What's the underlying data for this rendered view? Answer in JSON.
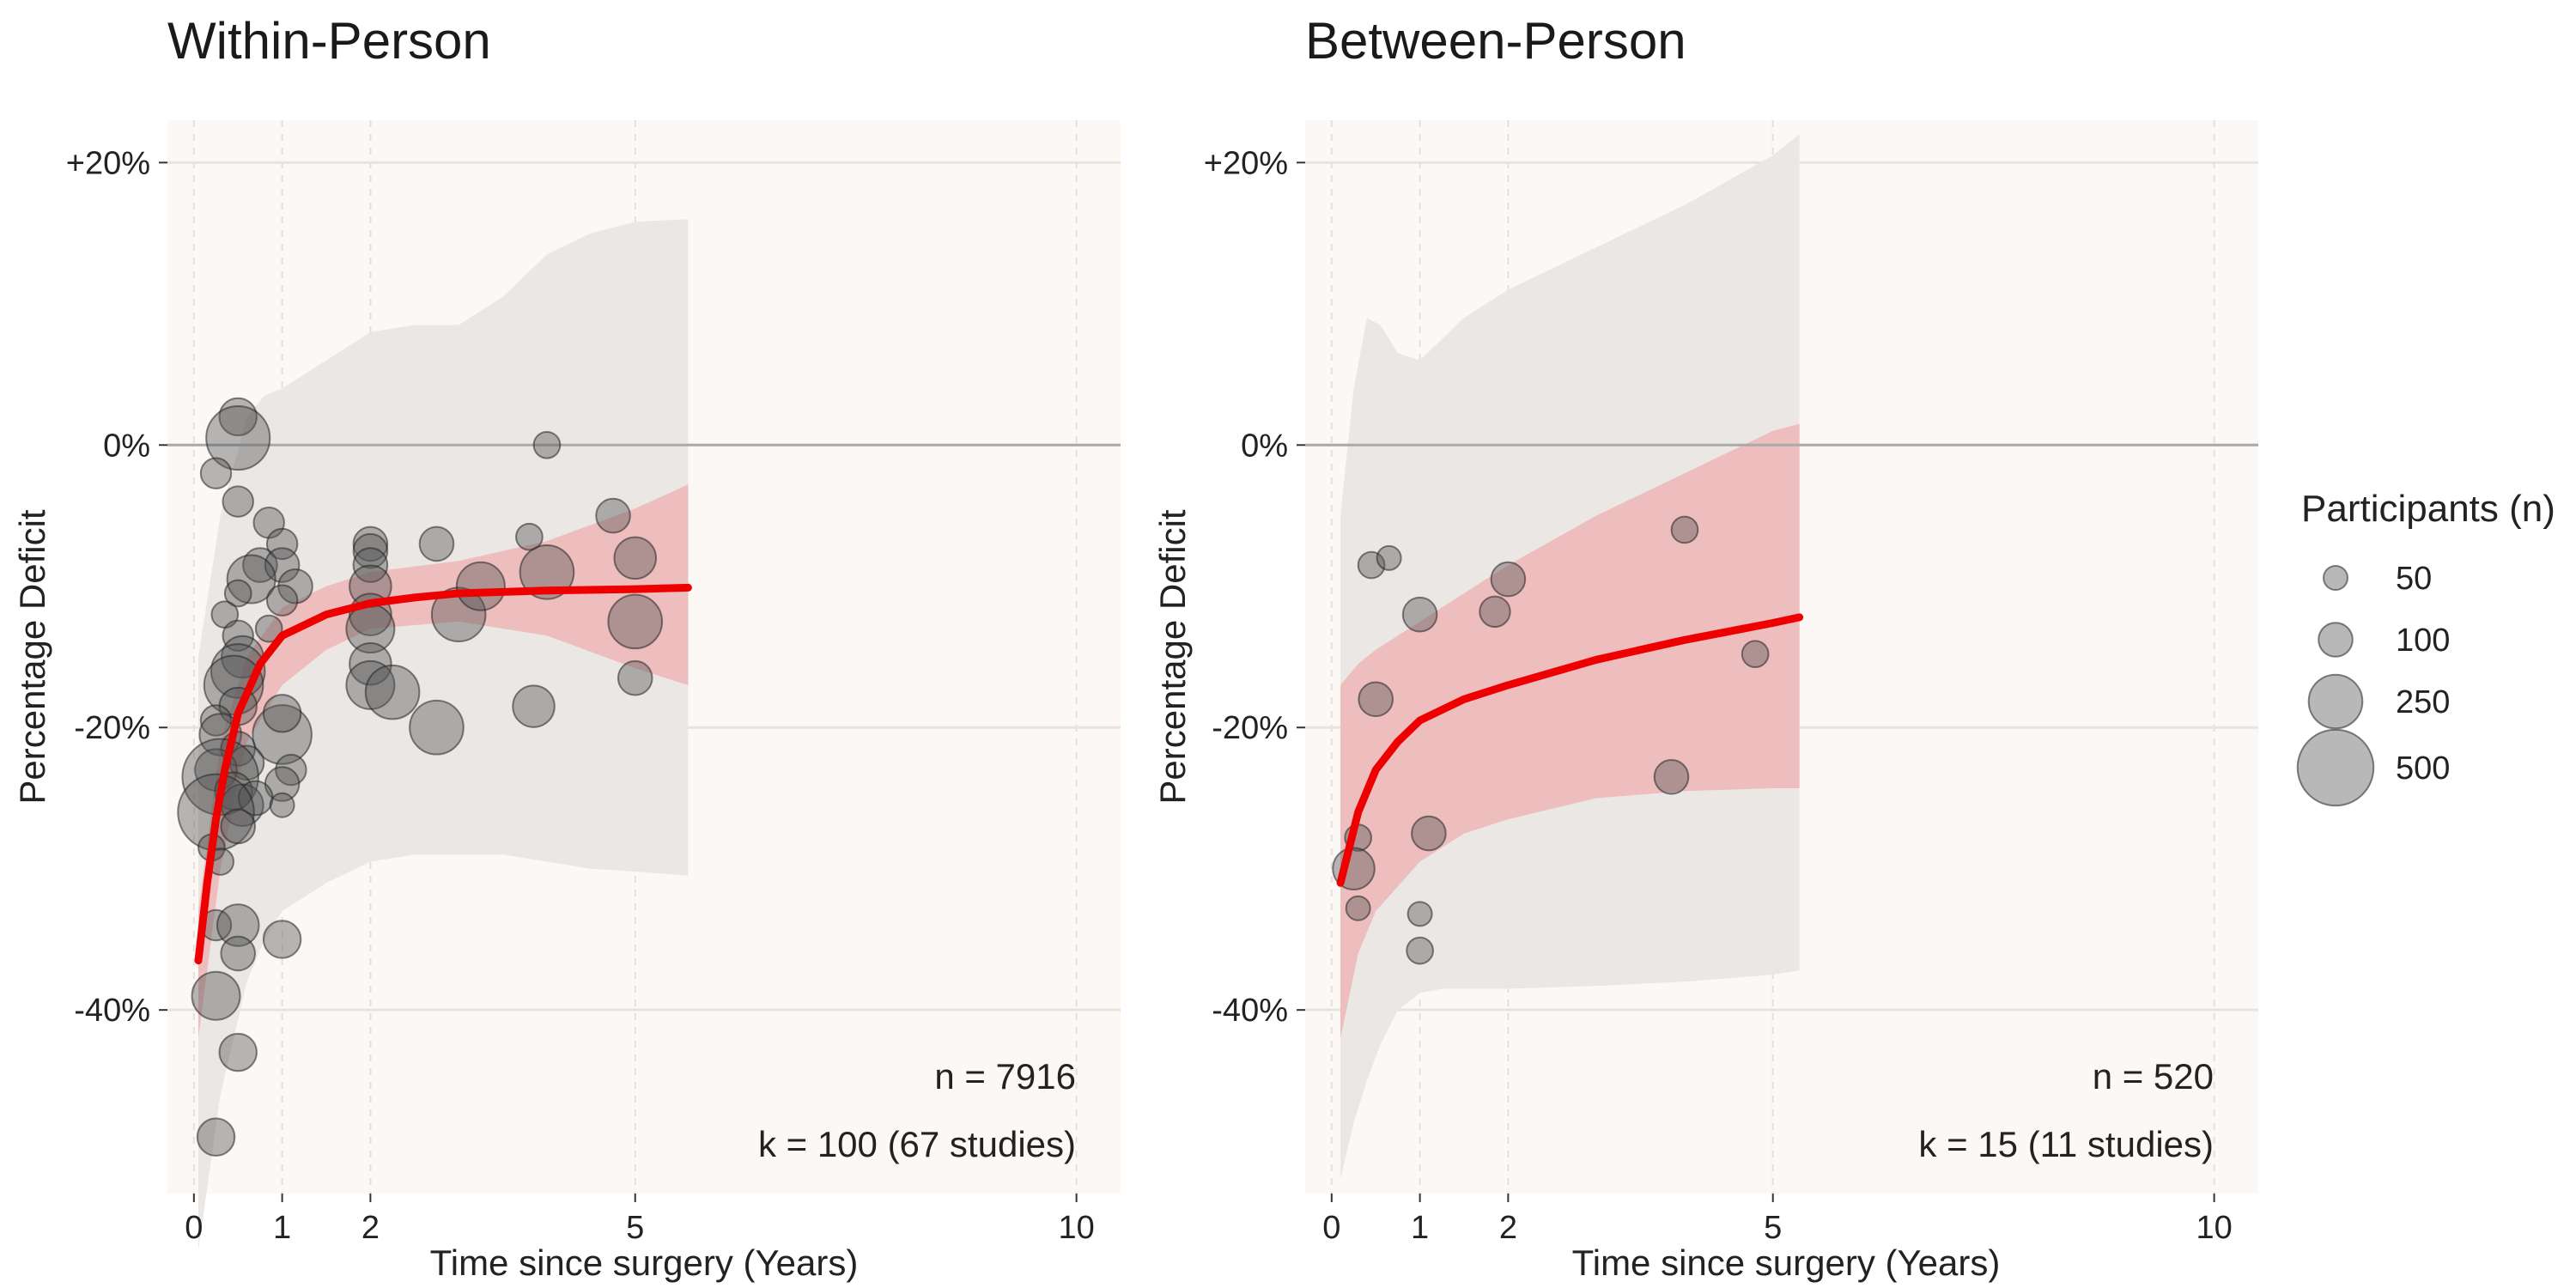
{
  "chart_data": [
    {
      "type": "scatter",
      "title": "Within-Person",
      "xlabel": "Time since surgery (Years)",
      "ylabel": "Percentage Deficit",
      "xlim": [
        -0.3,
        10.5
      ],
      "ylim": [
        -53,
        23
      ],
      "x_ticks": [
        0,
        1,
        2,
        5,
        10
      ],
      "y_ticks": [
        20,
        0,
        -20,
        -40
      ],
      "y_tick_labels": [
        "+20%",
        "0%",
        "-20%",
        "-40%"
      ],
      "grid": true,
      "reference_line": 0,
      "annotations": [
        "n = 7916",
        "k = 100 (67 studies)"
      ],
      "fit_curve": {
        "x": [
          0.05,
          0.15,
          0.25,
          0.35,
          0.5,
          0.75,
          1.0,
          1.5,
          2.0,
          2.5,
          3.0,
          4.0,
          5.0,
          5.6
        ],
        "y": [
          -36.5,
          -31,
          -26.5,
          -23,
          -19,
          -15.5,
          -13.5,
          -12,
          -11.2,
          -10.8,
          -10.5,
          -10.3,
          -10.2,
          -10.1
        ],
        "color": "#ee0000"
      },
      "inner_band": {
        "x": [
          0.05,
          0.3,
          0.6,
          1.0,
          1.5,
          2.0,
          3.0,
          4.0,
          5.0,
          5.6
        ],
        "upper": [
          -33,
          -21,
          -15,
          -11.5,
          -10,
          -9,
          -8.2,
          -6.8,
          -4.5,
          -2.8
        ],
        "lower": [
          -42,
          -30,
          -21,
          -17,
          -14.5,
          -13,
          -12.5,
          -13.5,
          -15.8,
          -17
        ],
        "color": "#eebbbb"
      },
      "outer_band": {
        "x": [
          0.05,
          0.3,
          0.6,
          0.8,
          1.0,
          1.5,
          2.0,
          2.5,
          3.0,
          3.5,
          4.0,
          4.5,
          5.0,
          5.6
        ],
        "upper": [
          -15,
          -5,
          2,
          3.5,
          4,
          6,
          8,
          8.5,
          8.5,
          10.5,
          13.5,
          15,
          15.8,
          16
        ],
        "lower": [
          -57,
          -46,
          -38,
          -35,
          -33,
          -31,
          -29.5,
          -29,
          -29,
          -29,
          -29.5,
          -30,
          -30.2,
          -30.5
        ],
        "color": "#ebe7e4"
      },
      "points": [
        {
          "x": 0.5,
          "y": 2,
          "n": 120
        },
        {
          "x": 0.5,
          "y": 0.5,
          "n": 350
        },
        {
          "x": 0.25,
          "y": -2,
          "n": 80
        },
        {
          "x": 0.5,
          "y": -4,
          "n": 80
        },
        {
          "x": 0.85,
          "y": -5.5,
          "n": 80
        },
        {
          "x": 1.0,
          "y": -7,
          "n": 80
        },
        {
          "x": 0.75,
          "y": -8.5,
          "n": 100
        },
        {
          "x": 1.0,
          "y": -8.5,
          "n": 100
        },
        {
          "x": 0.65,
          "y": -9.5,
          "n": 200
        },
        {
          "x": 1.15,
          "y": -10,
          "n": 100
        },
        {
          "x": 0.5,
          "y": -10.5,
          "n": 60
        },
        {
          "x": 1.0,
          "y": -11,
          "n": 80
        },
        {
          "x": 0.35,
          "y": -12,
          "n": 60
        },
        {
          "x": 0.85,
          "y": -13,
          "n": 60
        },
        {
          "x": 0.5,
          "y": -13.5,
          "n": 80
        },
        {
          "x": 0.55,
          "y": -15,
          "n": 150
        },
        {
          "x": 0.5,
          "y": -16,
          "n": 250
        },
        {
          "x": 0.45,
          "y": -17,
          "n": 300
        },
        {
          "x": 0.5,
          "y": -18.5,
          "n": 120
        },
        {
          "x": 0.25,
          "y": -19.5,
          "n": 80
        },
        {
          "x": 0.3,
          "y": -20.5,
          "n": 150
        },
        {
          "x": 1.0,
          "y": -20.5,
          "n": 300
        },
        {
          "x": 1.0,
          "y": -19,
          "n": 120
        },
        {
          "x": 0.5,
          "y": -21.5,
          "n": 100
        },
        {
          "x": 0.6,
          "y": -22.5,
          "n": 100
        },
        {
          "x": 0.25,
          "y": -23,
          "n": 150
        },
        {
          "x": 0.3,
          "y": -23.5,
          "n": 500
        },
        {
          "x": 1.1,
          "y": -23,
          "n": 80
        },
        {
          "x": 0.45,
          "y": -24.5,
          "n": 120
        },
        {
          "x": 1.0,
          "y": -24,
          "n": 100
        },
        {
          "x": 0.55,
          "y": -25.5,
          "n": 150
        },
        {
          "x": 0.7,
          "y": -25,
          "n": 100
        },
        {
          "x": 0.25,
          "y": -26,
          "n": 500
        },
        {
          "x": 0.5,
          "y": -27,
          "n": 100
        },
        {
          "x": 1.0,
          "y": -25.5,
          "n": 50
        },
        {
          "x": 0.2,
          "y": -28.5,
          "n": 60
        },
        {
          "x": 0.3,
          "y": -29.5,
          "n": 60
        },
        {
          "x": 0.25,
          "y": -34,
          "n": 80
        },
        {
          "x": 0.5,
          "y": -34,
          "n": 150
        },
        {
          "x": 0.5,
          "y": -36,
          "n": 100
        },
        {
          "x": 1.0,
          "y": -35,
          "n": 120
        },
        {
          "x": 0.25,
          "y": -39,
          "n": 200
        },
        {
          "x": 0.5,
          "y": -43,
          "n": 120
        },
        {
          "x": 0.25,
          "y": -49,
          "n": 120
        },
        {
          "x": 2.0,
          "y": -7,
          "n": 100
        },
        {
          "x": 2.0,
          "y": -7.5,
          "n": 100
        },
        {
          "x": 2.0,
          "y": -8.5,
          "n": 100
        },
        {
          "x": 2.0,
          "y": -10,
          "n": 150
        },
        {
          "x": 2.0,
          "y": -12,
          "n": 150
        },
        {
          "x": 2.0,
          "y": -13,
          "n": 200
        },
        {
          "x": 2.0,
          "y": -15.5,
          "n": 150
        },
        {
          "x": 2.0,
          "y": -17,
          "n": 200
        },
        {
          "x": 2.25,
          "y": -17.5,
          "n": 250
        },
        {
          "x": 2.75,
          "y": -20,
          "n": 250
        },
        {
          "x": 2.75,
          "y": -7,
          "n": 100
        },
        {
          "x": 3.0,
          "y": -12,
          "n": 250
        },
        {
          "x": 3.25,
          "y": -10,
          "n": 200
        },
        {
          "x": 3.8,
          "y": -6.5,
          "n": 60
        },
        {
          "x": 4.0,
          "y": 0,
          "n": 60
        },
        {
          "x": 4.0,
          "y": -9,
          "n": 250
        },
        {
          "x": 3.85,
          "y": -18.5,
          "n": 150
        },
        {
          "x": 4.75,
          "y": -5,
          "n": 100
        },
        {
          "x": 5.0,
          "y": -8,
          "n": 150
        },
        {
          "x": 5.0,
          "y": -12.5,
          "n": 250
        },
        {
          "x": 5.0,
          "y": -16.5,
          "n": 100
        }
      ]
    },
    {
      "type": "scatter",
      "title": "Between-Person",
      "xlabel": "Time since surgery (Years)",
      "ylabel": "Percentage Deficit",
      "xlim": [
        -0.3,
        10.5
      ],
      "ylim": [
        -53,
        23
      ],
      "x_ticks": [
        0,
        1,
        2,
        5,
        10
      ],
      "y_ticks": [
        20,
        0,
        -20,
        -40
      ],
      "y_tick_labels": [
        "+20%",
        "0%",
        "-20%",
        "-40%"
      ],
      "grid": true,
      "reference_line": 0,
      "annotations": [
        "n = 520",
        "k = 15 (11 studies)"
      ],
      "fit_curve": {
        "x": [
          0.1,
          0.3,
          0.5,
          0.75,
          1.0,
          1.5,
          2.0,
          3.0,
          4.0,
          5.0,
          5.3
        ],
        "y": [
          -31,
          -26,
          -23,
          -21,
          -19.5,
          -18,
          -17,
          -15.2,
          -13.8,
          -12.6,
          -12.2
        ],
        "color": "#ee0000"
      },
      "inner_band": {
        "x": [
          0.1,
          0.3,
          0.5,
          1.0,
          1.5,
          2.0,
          3.0,
          4.0,
          5.0,
          5.3
        ],
        "upper": [
          -17,
          -15.5,
          -14.5,
          -12.5,
          -10.5,
          -8.5,
          -5,
          -2,
          1,
          1.5
        ],
        "lower": [
          -42,
          -36,
          -33,
          -29.5,
          -27.5,
          -26.5,
          -25,
          -24.5,
          -24.3,
          -24.3
        ],
        "color": "#eebbbb"
      },
      "outer_band": {
        "x": [
          0.1,
          0.25,
          0.4,
          0.55,
          0.75,
          1.0,
          1.25,
          1.5,
          2.0,
          3.0,
          4.0,
          5.0,
          5.3
        ],
        "upper": [
          -5,
          4,
          9,
          8.5,
          6.5,
          6,
          7.5,
          9,
          11,
          14,
          17,
          20.5,
          22
        ],
        "lower": [
          -52,
          -48,
          -45,
          -42.5,
          -40,
          -38.8,
          -38.5,
          -38.5,
          -38.5,
          -38.3,
          -38,
          -37.5,
          -37.2
        ],
        "color": "#ebe7e4"
      },
      "points": [
        {
          "x": 0.45,
          "y": -8.5,
          "n": 60
        },
        {
          "x": 0.65,
          "y": -8,
          "n": 50
        },
        {
          "x": 1.0,
          "y": -12,
          "n": 100
        },
        {
          "x": 2.0,
          "y": -9.5,
          "n": 100
        },
        {
          "x": 1.85,
          "y": -11.8,
          "n": 80
        },
        {
          "x": 0.5,
          "y": -18,
          "n": 100
        },
        {
          "x": 1.1,
          "y": -27.5,
          "n": 100
        },
        {
          "x": 0.3,
          "y": -27.8,
          "n": 60
        },
        {
          "x": 0.25,
          "y": -30,
          "n": 150
        },
        {
          "x": 0.3,
          "y": -32.8,
          "n": 50
        },
        {
          "x": 1.0,
          "y": -33.2,
          "n": 50
        },
        {
          "x": 1.0,
          "y": -35.8,
          "n": 60
        },
        {
          "x": 3.85,
          "y": -23.5,
          "n": 100
        },
        {
          "x": 4.0,
          "y": -6,
          "n": 60
        },
        {
          "x": 4.8,
          "y": -14.8,
          "n": 60
        }
      ]
    }
  ],
  "legend": {
    "title": "Participants (n)",
    "entries": [
      {
        "label": "50",
        "n": 50
      },
      {
        "label": "100",
        "n": 100
      },
      {
        "label": "250",
        "n": 250
      },
      {
        "label": "500",
        "n": 500
      }
    ]
  },
  "colors": {
    "panel_bg": "#fbf8f5",
    "point_fill": "#555555",
    "fit_line": "#ee0000",
    "reference_line": "#aaaaaa"
  }
}
